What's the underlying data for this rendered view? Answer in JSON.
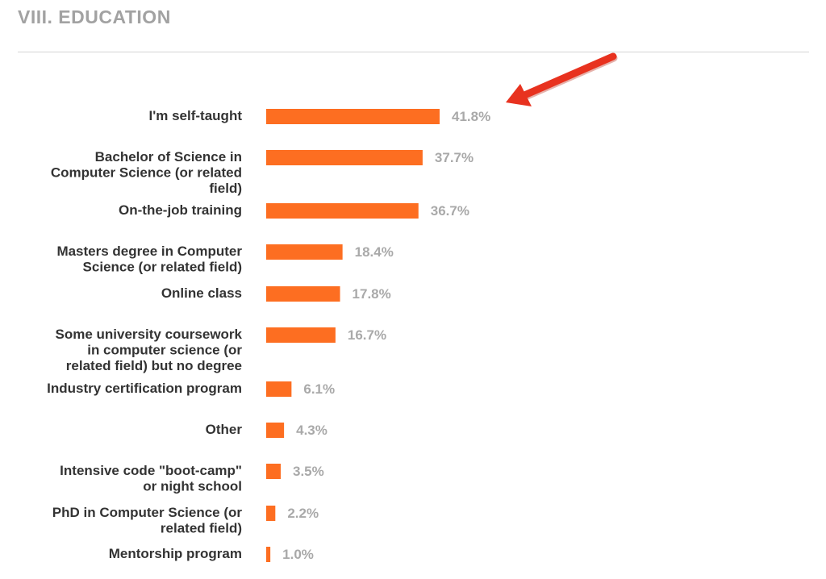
{
  "page": {
    "section_title": "VIII. EDUCATION"
  },
  "colors": {
    "bar": "#fd6e21",
    "value_label": "#a9a9a9",
    "category_label": "#333333",
    "title": "#a2a2a2",
    "arrow": "#e8321f"
  },
  "annotation": {
    "icon": "red-arrow-icon"
  },
  "chart_data": {
    "type": "bar",
    "orientation": "horizontal",
    "title": "",
    "xlabel": "",
    "ylabel": "",
    "xlim": [
      0,
      45
    ],
    "grid": false,
    "categories": [
      [
        "I'm self-taught"
      ],
      [
        "Bachelor of Science in",
        "Computer Science (or related",
        "field)"
      ],
      [
        "On-the-job training"
      ],
      [
        "Masters degree in Computer",
        "Science (or related field)"
      ],
      [
        "Online class"
      ],
      [
        "Some university coursework",
        "in computer science (or",
        "related field) but no degree"
      ],
      [
        "Industry certification program"
      ],
      [
        "Other"
      ],
      [
        "Intensive code \"boot-camp\"",
        "or night school"
      ],
      [
        "PhD in Computer Science (or",
        "related field)"
      ],
      [
        "Mentorship program"
      ]
    ],
    "values": [
      41.8,
      37.7,
      36.7,
      18.4,
      17.8,
      16.7,
      6.1,
      4.3,
      3.5,
      2.2,
      1.0
    ],
    "value_labels": [
      "41.8%",
      "37.7%",
      "36.7%",
      "18.4%",
      "17.8%",
      "16.7%",
      "6.1%",
      "4.3%",
      "3.5%",
      "2.2%",
      "1.0%"
    ]
  }
}
